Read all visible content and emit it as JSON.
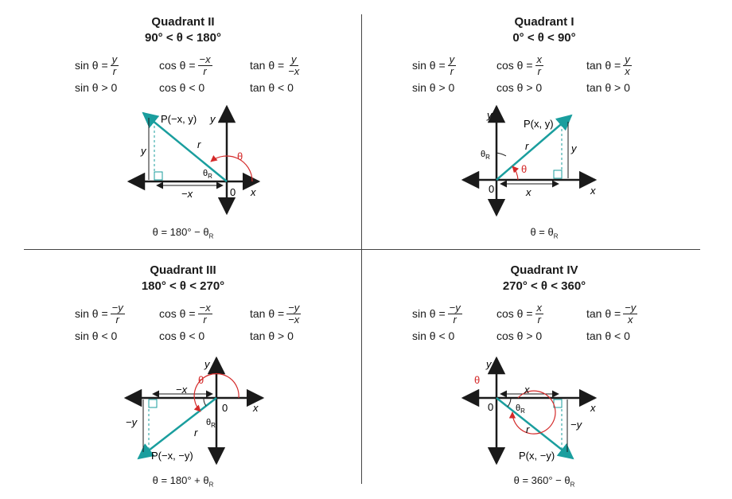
{
  "colors": {
    "teal": "#1a9e9e",
    "angle_red": "#d42a2a",
    "axis": "#1a1a1a",
    "divider": "#444444"
  },
  "labels": {
    "x_axis": "x",
    "y_axis": "y",
    "origin": "0",
    "r": "r",
    "theta": "θ",
    "theta_r": "θ",
    "r_subscript": "R"
  },
  "quadrants": {
    "q2": {
      "title": "Quadrant II",
      "range": "90° < θ < 180°",
      "sin": {
        "label": "sin θ =",
        "num": "y",
        "den": "r",
        "sign": "sin θ > 0"
      },
      "cos": {
        "label": "cos θ =",
        "num": "−x",
        "den": "r",
        "sign": "cos θ < 0"
      },
      "tan": {
        "label": "tan θ =",
        "num": "y",
        "den": "−x",
        "sign": "tan θ < 0"
      },
      "point": "P(−x, y)",
      "horiz_label": "−x",
      "vert_label": "y",
      "formula": "θ = 180° − θ",
      "formula_sub": "R"
    },
    "q1": {
      "title": "Quadrant I",
      "range": "0° < θ < 90°",
      "sin": {
        "label": "sin θ =",
        "num": "y",
        "den": "r",
        "sign": "sin θ > 0"
      },
      "cos": {
        "label": "cos θ =",
        "num": "x",
        "den": "r",
        "sign": "cos θ > 0"
      },
      "tan": {
        "label": "tan θ =",
        "num": "y",
        "den": "x",
        "sign": "tan θ > 0"
      },
      "point": "P(x, y)",
      "horiz_label": "x",
      "vert_label": "y",
      "formula": "θ = θ",
      "formula_sub": "R"
    },
    "q3": {
      "title": "Quadrant III",
      "range": "180° < θ < 270°",
      "sin": {
        "label": "sin θ =",
        "num": "−y",
        "den": "r",
        "sign": "sin θ < 0"
      },
      "cos": {
        "label": "cos θ =",
        "num": "−x",
        "den": "r",
        "sign": "cos θ < 0"
      },
      "tan": {
        "label": "tan θ =",
        "num": "−y",
        "den": "−x",
        "sign": "tan θ > 0"
      },
      "point": "P(−x, −y)",
      "horiz_label": "−x",
      "vert_label": "−y",
      "formula": "θ = 180° + θ",
      "formula_sub": "R"
    },
    "q4": {
      "title": "Quadrant IV",
      "range": "270° < θ < 360°",
      "sin": {
        "label": "sin θ =",
        "num": "−y",
        "den": "r",
        "sign": "sin θ < 0"
      },
      "cos": {
        "label": "cos θ =",
        "num": "x",
        "den": "r",
        "sign": "cos θ > 0"
      },
      "tan": {
        "label": "tan θ =",
        "num": "−y",
        "den": "x",
        "sign": "tan θ < 0"
      },
      "point": "P(x, −y)",
      "horiz_label": "x",
      "vert_label": "−y",
      "formula": "θ = 360° − θ",
      "formula_sub": "R"
    }
  }
}
